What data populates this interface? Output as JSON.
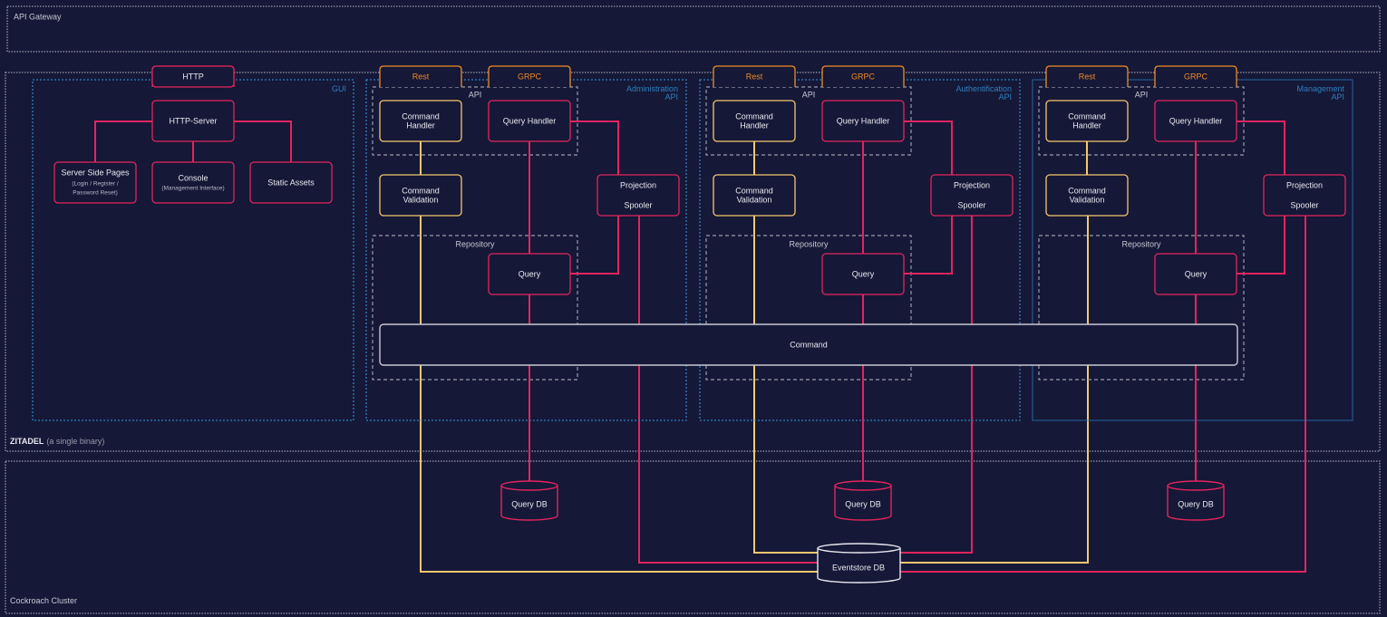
{
  "gateway": {
    "label": "API Gateway"
  },
  "zitadel": {
    "label_bold": "ZITADEL",
    "label_rest": "(a single binary)"
  },
  "cockroach": {
    "label": "Cockroach Cluster"
  },
  "gui": {
    "label": "GUI",
    "http_tab": "HTTP",
    "server": "HTTP-Server",
    "ssp": {
      "title": "Server Side Pages",
      "sub1": "(Login / Register /",
      "sub2": "Password Reset)"
    },
    "console": {
      "title": "Console",
      "sub": "(Management Interface)"
    },
    "static": "Static Assets"
  },
  "apis": [
    {
      "name_line1": "Administration",
      "name_line2": "API",
      "rest": "Rest",
      "grpc": "GRPC",
      "api_group": "API",
      "command_handler": [
        "Command",
        "Handler"
      ],
      "query_handler": "Query Handler",
      "command_validation": [
        "Command",
        "Validation"
      ],
      "projection": "Projection",
      "spooler": "Spooler",
      "repository": "Repository",
      "query": "Query",
      "query_db": "Query DB"
    },
    {
      "name_line1": "Authentification",
      "name_line2": "API",
      "rest": "Rest",
      "grpc": "GRPC",
      "api_group": "API",
      "command_handler": [
        "Command",
        "Handler"
      ],
      "query_handler": "Query Handler",
      "command_validation": [
        "Command",
        "Validation"
      ],
      "projection": "Projection",
      "spooler": "Spooler",
      "repository": "Repository",
      "query": "Query",
      "query_db": "Query DB"
    },
    {
      "name_line1": "Management",
      "name_line2": "API",
      "rest": "Rest",
      "grpc": "GRPC",
      "api_group": "API",
      "command_handler": [
        "Command",
        "Handler"
      ],
      "query_handler": "Query Handler",
      "command_validation": [
        "Command",
        "Validation"
      ],
      "projection": "Projection",
      "spooler": "Spooler",
      "repository": "Repository",
      "query": "Query",
      "query_db": "Query DB"
    }
  ],
  "command": "Command",
  "eventstore": "Eventstore DB",
  "colors": {
    "background": "#151837",
    "query_path": "#e3245f",
    "command_path": "#f6c76e",
    "protocol": "#f08a24",
    "service_border": "#2f7fbf",
    "neutral": "#c8c8d4"
  }
}
